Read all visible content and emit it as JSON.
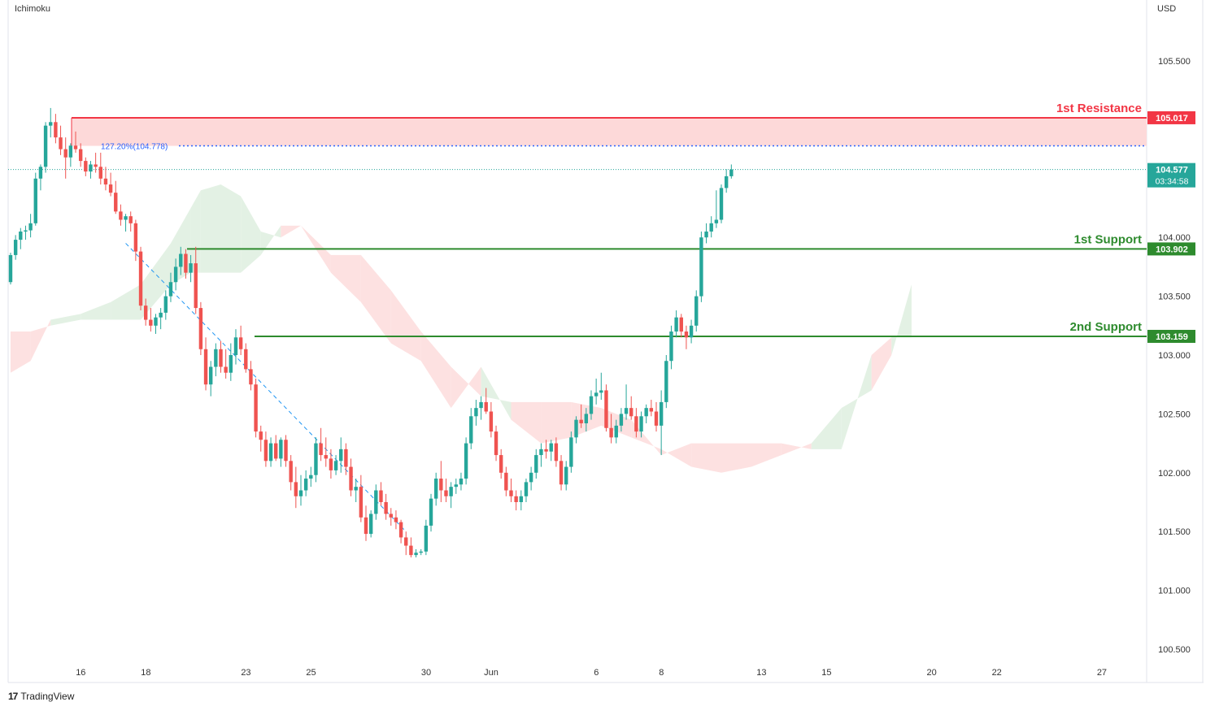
{
  "header": {
    "indicator": "Ichimoku",
    "currency": "USD"
  },
  "footer": {
    "brand_logo": "17",
    "brand": "TradingView"
  },
  "colors": {
    "bull": "#26a69a",
    "bear": "#ef5350",
    "resistance": "#f23645",
    "support": "#2e8b2e",
    "fib": "#2962ff",
    "cloud_bull": "#e3f1e4",
    "cloud_bear": "#fde1e1",
    "zone": "#fdd9d9"
  },
  "chart_data": {
    "type": "candlestick",
    "y_range": [
      100.3,
      105.9
    ],
    "y_ticks": [
      "100.500",
      "101.000",
      "101.500",
      "102.000",
      "102.500",
      "103.000",
      "103.500",
      "104.000",
      "105.500"
    ],
    "y_tick_values": [
      100.5,
      101.0,
      101.5,
      102.0,
      102.5,
      103.0,
      103.5,
      104.0,
      105.5
    ],
    "x_ticks": [
      "16",
      "18",
      "23",
      "25",
      "30",
      "Jun",
      "6",
      "8",
      "13",
      "15",
      "20",
      "22",
      "27"
    ],
    "levels": [
      {
        "name": "1st Resistance",
        "value": "105.017",
        "price": 105.017,
        "kind": "resistance"
      },
      {
        "name": "1st Support",
        "value": "103.902",
        "price": 103.902,
        "kind": "support"
      },
      {
        "name": "2nd Support",
        "value": "103.159",
        "price": 103.159,
        "kind": "support"
      }
    ],
    "fib_label": "127.20%(104.778)",
    "fib_price": 104.778,
    "last_price": "104.577",
    "last_price_value": 104.577,
    "countdown": "03:34:58",
    "candles": [
      [
        103.62,
        103.87,
        103.6,
        103.85
      ],
      [
        103.85,
        104.02,
        103.81,
        103.98
      ],
      [
        103.98,
        104.08,
        103.9,
        104.05
      ],
      [
        104.05,
        104.1,
        103.98,
        104.06
      ],
      [
        104.06,
        104.2,
        104.0,
        104.12
      ],
      [
        104.12,
        104.55,
        104.1,
        104.5
      ],
      [
        104.5,
        104.62,
        104.4,
        104.6
      ],
      [
        104.6,
        104.98,
        104.55,
        104.95
      ],
      [
        104.95,
        105.1,
        104.85,
        104.98
      ],
      [
        104.98,
        105.05,
        104.8,
        104.85
      ],
      [
        104.85,
        104.95,
        104.7,
        104.75
      ],
      [
        104.75,
        104.85,
        104.5,
        104.68
      ],
      [
        104.68,
        104.8,
        104.6,
        104.78
      ],
      [
        104.78,
        104.9,
        104.72,
        104.75
      ],
      [
        104.75,
        104.8,
        104.6,
        104.65
      ],
      [
        104.65,
        104.68,
        104.52,
        104.56
      ],
      [
        104.56,
        104.65,
        104.5,
        104.62
      ],
      [
        104.62,
        104.72,
        104.55,
        104.6
      ],
      [
        104.6,
        104.72,
        104.45,
        104.5
      ],
      [
        104.5,
        104.6,
        104.4,
        104.45
      ],
      [
        104.45,
        104.55,
        104.35,
        104.38
      ],
      [
        104.38,
        104.48,
        104.2,
        104.22
      ],
      [
        104.22,
        104.28,
        104.1,
        104.15
      ],
      [
        104.15,
        104.2,
        104.05,
        104.18
      ],
      [
        104.18,
        104.22,
        104.05,
        104.12
      ],
      [
        104.12,
        104.15,
        103.8,
        103.88
      ],
      [
        103.88,
        103.92,
        103.38,
        103.42
      ],
      [
        103.42,
        103.48,
        103.25,
        103.3
      ],
      [
        103.3,
        103.4,
        103.2,
        103.25
      ],
      [
        103.25,
        103.35,
        103.18,
        103.32
      ],
      [
        103.32,
        103.4,
        103.22,
        103.36
      ],
      [
        103.36,
        103.55,
        103.3,
        103.5
      ],
      [
        103.5,
        103.7,
        103.45,
        103.62
      ],
      [
        103.62,
        103.82,
        103.55,
        103.75
      ],
      [
        103.75,
        103.92,
        103.68,
        103.86
      ],
      [
        103.86,
        103.9,
        103.65,
        103.7
      ],
      [
        103.7,
        103.85,
        103.62,
        103.78
      ],
      [
        103.78,
        103.92,
        103.35,
        103.4
      ],
      [
        103.4,
        103.45,
        103.0,
        103.05
      ],
      [
        103.05,
        103.15,
        102.7,
        102.75
      ],
      [
        102.75,
        102.95,
        102.65,
        102.9
      ],
      [
        102.9,
        103.1,
        102.82,
        103.05
      ],
      [
        103.05,
        103.12,
        102.85,
        102.9
      ],
      [
        102.9,
        103.05,
        102.8,
        102.85
      ],
      [
        102.85,
        103.1,
        102.78,
        103.0
      ],
      [
        103.0,
        103.22,
        102.92,
        103.15
      ],
      [
        103.15,
        103.25,
        103.0,
        103.05
      ],
      [
        103.05,
        103.1,
        102.85,
        102.88
      ],
      [
        102.88,
        102.95,
        102.7,
        102.75
      ],
      [
        102.75,
        102.8,
        102.3,
        102.35
      ],
      [
        102.35,
        102.4,
        102.18,
        102.28
      ],
      [
        102.28,
        102.35,
        102.05,
        102.1
      ],
      [
        102.1,
        102.3,
        102.05,
        102.25
      ],
      [
        102.25,
        102.32,
        102.1,
        102.12
      ],
      [
        102.12,
        102.3,
        102.05,
        102.28
      ],
      [
        102.28,
        102.32,
        102.05,
        102.1
      ],
      [
        102.1,
        102.15,
        101.85,
        101.92
      ],
      [
        101.92,
        102.05,
        101.7,
        101.8
      ],
      [
        101.8,
        101.98,
        101.72,
        101.85
      ],
      [
        101.85,
        102.02,
        101.8,
        101.95
      ],
      [
        101.95,
        102.05,
        101.88,
        101.98
      ],
      [
        101.98,
        102.3,
        101.92,
        102.25
      ],
      [
        102.25,
        102.38,
        102.1,
        102.15
      ],
      [
        102.15,
        102.3,
        102.05,
        102.12
      ],
      [
        102.12,
        102.2,
        101.95,
        102.02
      ],
      [
        102.02,
        102.15,
        101.98,
        102.1
      ],
      [
        102.1,
        102.3,
        102.0,
        102.2
      ],
      [
        102.2,
        102.25,
        101.98,
        102.05
      ],
      [
        102.05,
        102.12,
        101.8,
        101.85
      ],
      [
        101.85,
        101.95,
        101.75,
        101.88
      ],
      [
        101.88,
        101.98,
        101.58,
        101.62
      ],
      [
        101.62,
        101.72,
        101.42,
        101.48
      ],
      [
        101.48,
        101.68,
        101.45,
        101.65
      ],
      [
        101.65,
        101.9,
        101.6,
        101.85
      ],
      [
        101.85,
        101.92,
        101.72,
        101.75
      ],
      [
        101.75,
        101.82,
        101.6,
        101.65
      ],
      [
        101.65,
        101.7,
        101.55,
        101.62
      ],
      [
        101.62,
        101.68,
        101.52,
        101.58
      ],
      [
        101.58,
        101.6,
        101.4,
        101.45
      ],
      [
        101.45,
        101.5,
        101.3,
        101.38
      ],
      [
        101.38,
        101.45,
        101.28,
        101.3
      ],
      [
        101.3,
        101.35,
        101.28,
        101.32
      ],
      [
        101.32,
        101.35,
        101.3,
        101.33
      ],
      [
        101.33,
        101.6,
        101.3,
        101.55
      ],
      [
        101.55,
        101.82,
        101.5,
        101.78
      ],
      [
        101.78,
        102.0,
        101.72,
        101.95
      ],
      [
        101.95,
        102.1,
        101.75,
        101.85
      ],
      [
        101.85,
        101.95,
        101.75,
        101.8
      ],
      [
        101.8,
        101.92,
        101.7,
        101.88
      ],
      [
        101.88,
        101.95,
        101.82,
        101.9
      ],
      [
        101.9,
        102.0,
        101.85,
        101.95
      ],
      [
        101.95,
        102.3,
        101.9,
        102.25
      ],
      [
        102.25,
        102.55,
        102.2,
        102.48
      ],
      [
        102.48,
        102.62,
        102.4,
        102.55
      ],
      [
        102.55,
        102.65,
        102.45,
        102.6
      ],
      [
        102.6,
        102.72,
        102.5,
        102.52
      ],
      [
        102.52,
        102.6,
        102.3,
        102.35
      ],
      [
        102.35,
        102.4,
        102.1,
        102.15
      ],
      [
        102.15,
        102.2,
        101.95,
        102.0
      ],
      [
        102.0,
        102.05,
        101.8,
        101.85
      ],
      [
        101.85,
        101.95,
        101.75,
        101.8
      ],
      [
        101.8,
        101.85,
        101.68,
        101.75
      ],
      [
        101.75,
        101.85,
        101.68,
        101.8
      ],
      [
        101.8,
        101.95,
        101.75,
        101.92
      ],
      [
        101.92,
        102.05,
        101.85,
        102.0
      ],
      [
        102.0,
        102.2,
        101.95,
        102.15
      ],
      [
        102.15,
        102.25,
        102.05,
        102.2
      ],
      [
        102.2,
        102.28,
        102.12,
        102.18
      ],
      [
        102.18,
        102.28,
        102.1,
        102.25
      ],
      [
        102.25,
        102.3,
        102.05,
        102.1
      ],
      [
        102.1,
        102.15,
        101.85,
        101.9
      ],
      [
        101.9,
        102.1,
        101.85,
        102.05
      ],
      [
        102.05,
        102.35,
        102.0,
        102.3
      ],
      [
        102.3,
        102.48,
        102.25,
        102.45
      ],
      [
        102.45,
        102.58,
        102.38,
        102.42
      ],
      [
        102.42,
        102.55,
        102.35,
        102.5
      ],
      [
        102.5,
        102.7,
        102.45,
        102.65
      ],
      [
        102.65,
        102.8,
        102.58,
        102.68
      ],
      [
        102.68,
        102.85,
        102.62,
        102.7
      ],
      [
        102.7,
        102.75,
        102.35,
        102.38
      ],
      [
        102.38,
        102.5,
        102.25,
        102.3
      ],
      [
        102.3,
        102.45,
        102.25,
        102.4
      ],
      [
        102.4,
        102.55,
        102.35,
        102.5
      ],
      [
        102.5,
        102.75,
        102.45,
        102.55
      ],
      [
        102.55,
        102.65,
        102.45,
        102.48
      ],
      [
        102.48,
        102.55,
        102.3,
        102.35
      ],
      [
        102.35,
        102.52,
        102.3,
        102.48
      ],
      [
        102.48,
        102.58,
        102.42,
        102.55
      ],
      [
        102.55,
        102.62,
        102.48,
        102.52
      ],
      [
        102.52,
        102.6,
        102.35,
        102.4
      ],
      [
        102.4,
        102.7,
        102.15,
        102.6
      ],
      [
        102.6,
        103.0,
        102.55,
        102.95
      ],
      [
        102.95,
        103.25,
        102.88,
        103.2
      ],
      [
        103.2,
        103.38,
        103.15,
        103.32
      ],
      [
        103.32,
        103.35,
        103.15,
        103.2
      ],
      [
        103.2,
        103.25,
        103.05,
        103.15
      ],
      [
        103.15,
        103.3,
        103.1,
        103.25
      ],
      [
        103.25,
        103.55,
        103.2,
        103.5
      ],
      [
        103.5,
        104.05,
        103.45,
        104.0
      ],
      [
        104.0,
        104.12,
        103.95,
        104.05
      ],
      [
        104.05,
        104.18,
        104.0,
        104.12
      ],
      [
        104.12,
        104.4,
        104.08,
        104.15
      ],
      [
        104.15,
        104.45,
        104.12,
        104.42
      ],
      [
        104.42,
        104.58,
        104.38,
        104.52
      ],
      [
        104.52,
        104.62,
        104.5,
        104.577
      ]
    ],
    "candle_period": "4h",
    "ichimoku_cloud": {
      "senkou_a": [
        [
          0,
          102.85
        ],
        [
          4,
          102.95
        ],
        [
          8,
          103.3
        ],
        [
          14,
          103.35
        ],
        [
          20,
          103.45
        ],
        [
          26,
          103.6
        ],
        [
          32,
          103.95
        ],
        [
          36,
          104.25
        ],
        [
          38,
          104.4
        ],
        [
          42,
          104.45
        ],
        [
          46,
          104.35
        ],
        [
          50,
          104.05
        ],
        [
          54,
          104.0
        ],
        [
          58,
          104.1
        ],
        [
          64,
          103.7
        ],
        [
          70,
          103.45
        ],
        [
          76,
          103.1
        ],
        [
          82,
          102.95
        ],
        [
          88,
          102.55
        ],
        [
          94,
          102.9
        ],
        [
          100,
          102.45
        ],
        [
          106,
          102.25
        ],
        [
          112,
          102.3
        ],
        [
          118,
          102.4
        ],
        [
          124,
          102.3
        ],
        [
          130,
          102.2
        ],
        [
          136,
          102.05
        ],
        [
          142,
          102.0
        ],
        [
          148,
          102.05
        ],
        [
          154,
          102.15
        ],
        [
          160,
          102.25
        ],
        [
          166,
          102.55
        ],
        [
          172,
          102.7
        ],
        [
          176,
          103.0
        ],
        [
          180,
          103.6
        ]
      ],
      "senkou_b": [
        [
          0,
          103.2
        ],
        [
          4,
          103.2
        ],
        [
          8,
          103.25
        ],
        [
          14,
          103.3
        ],
        [
          20,
          103.3
        ],
        [
          26,
          103.3
        ],
        [
          32,
          103.6
        ],
        [
          36,
          103.7
        ],
        [
          38,
          103.7
        ],
        [
          42,
          103.7
        ],
        [
          46,
          103.7
        ],
        [
          50,
          103.85
        ],
        [
          54,
          104.1
        ],
        [
          58,
          104.1
        ],
        [
          64,
          103.85
        ],
        [
          70,
          103.85
        ],
        [
          76,
          103.55
        ],
        [
          82,
          103.2
        ],
        [
          88,
          102.9
        ],
        [
          94,
          102.65
        ],
        [
          100,
          102.6
        ],
        [
          106,
          102.6
        ],
        [
          112,
          102.6
        ],
        [
          118,
          102.55
        ],
        [
          124,
          102.45
        ],
        [
          130,
          102.15
        ],
        [
          136,
          102.25
        ],
        [
          142,
          102.25
        ],
        [
          148,
          102.25
        ],
        [
          154,
          102.25
        ],
        [
          160,
          102.2
        ],
        [
          166,
          102.2
        ],
        [
          172,
          103.0
        ],
        [
          176,
          103.15
        ],
        [
          180,
          103.15
        ]
      ]
    },
    "trendline": {
      "from": [
        23,
        103.95
      ],
      "to": [
        79,
        101.5
      ]
    }
  }
}
